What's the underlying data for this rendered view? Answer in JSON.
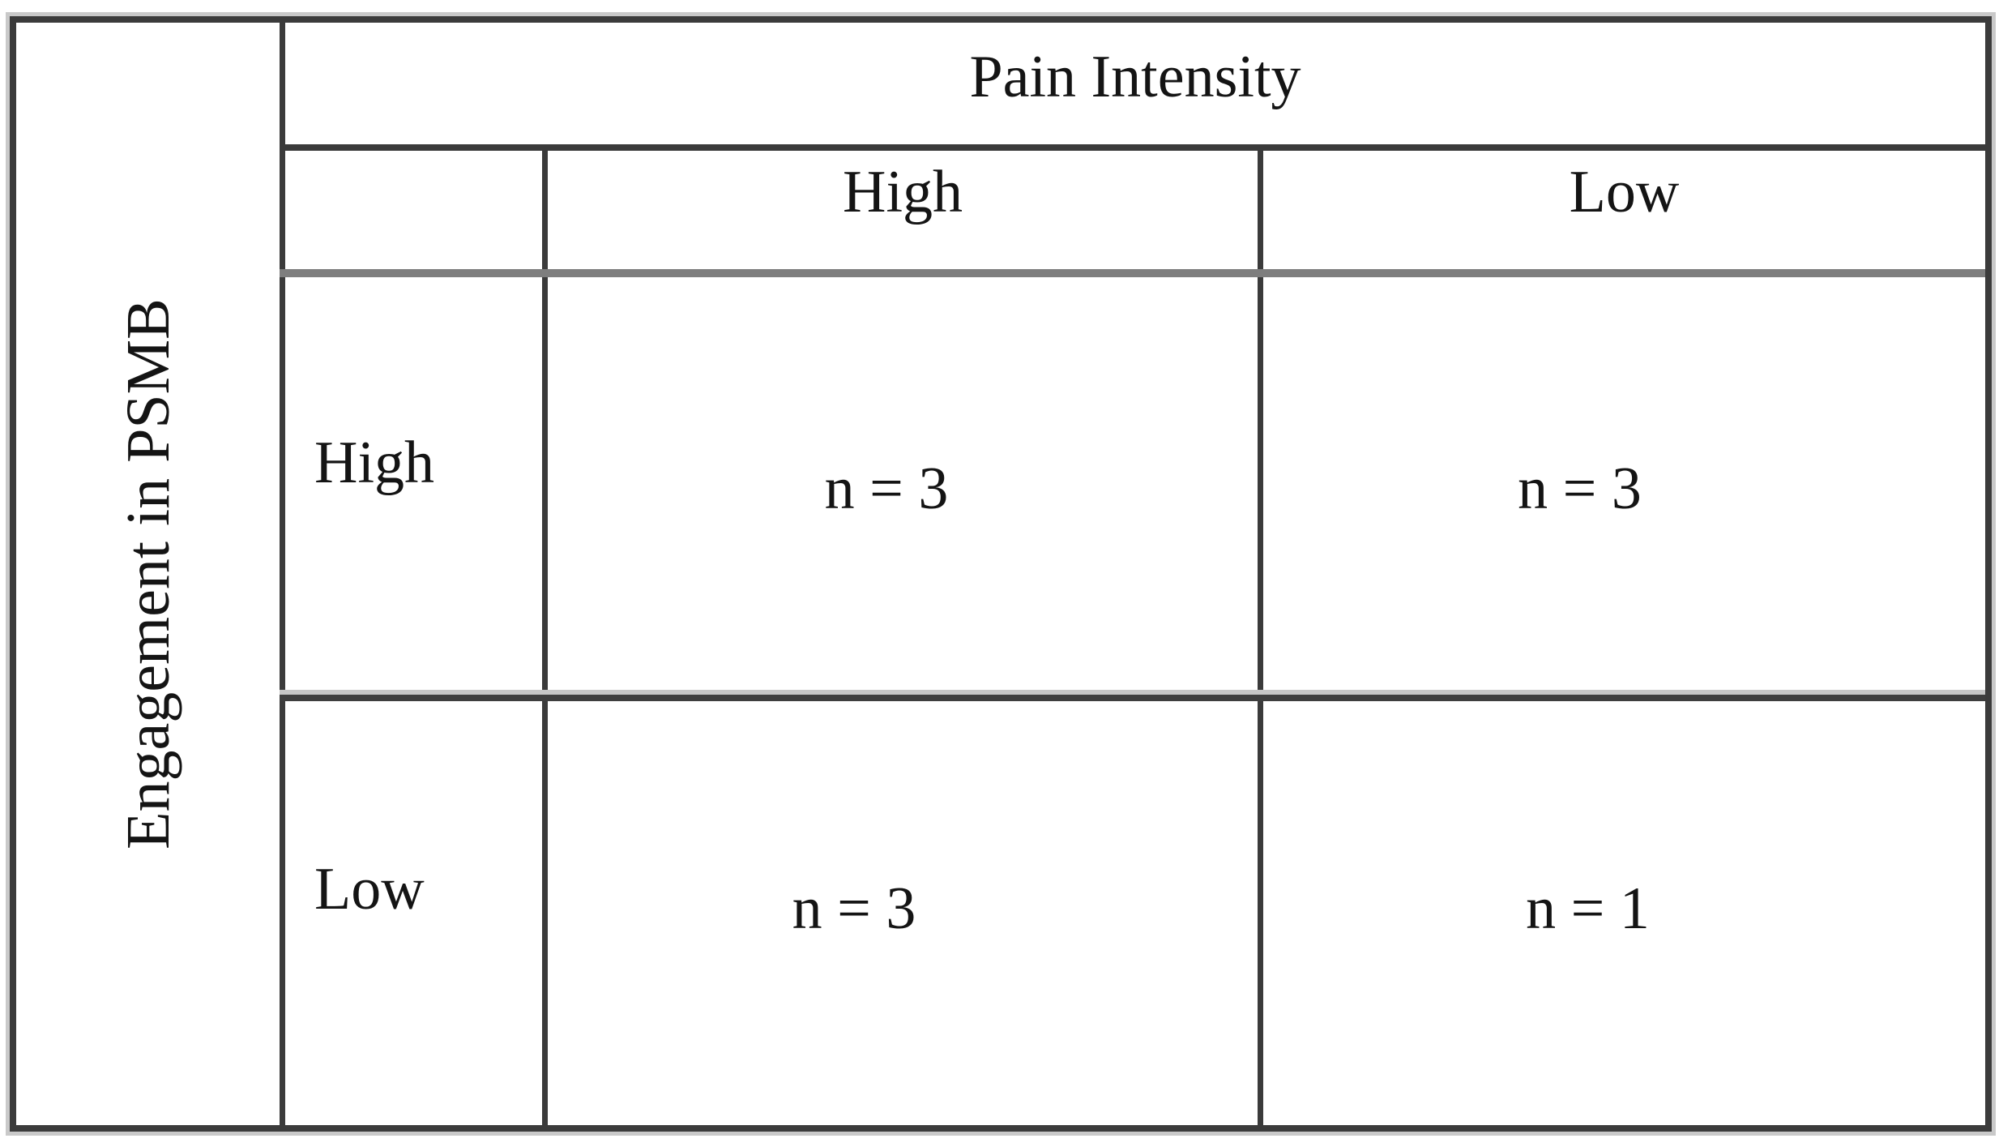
{
  "table": {
    "title": "Pain Intensity",
    "side_title": "Engagement in PSMB",
    "column_headers": [
      "High",
      "Low"
    ],
    "rows": [
      {
        "header": "High",
        "cells": [
          "n = 3",
          "n = 3"
        ]
      },
      {
        "header": "Low",
        "cells": [
          "n = 3",
          "n = 1"
        ]
      }
    ]
  },
  "chart_data": {
    "type": "table",
    "column_variable": "Pain Intensity",
    "row_variable": "Engagement in PSMB",
    "columns": [
      "High",
      "Low"
    ],
    "rows": [
      "High",
      "Low"
    ],
    "values": [
      [
        3,
        3
      ],
      [
        3,
        1
      ]
    ],
    "cell_format": "n = {value}"
  },
  "colors": {
    "border_dark": "#3b3b3b",
    "rule_gray": "#7e7e7e",
    "rule_light": "#c6c6c6",
    "scan_halo": "#c9c9c9",
    "text": "#141414",
    "background": "#ffffff"
  }
}
